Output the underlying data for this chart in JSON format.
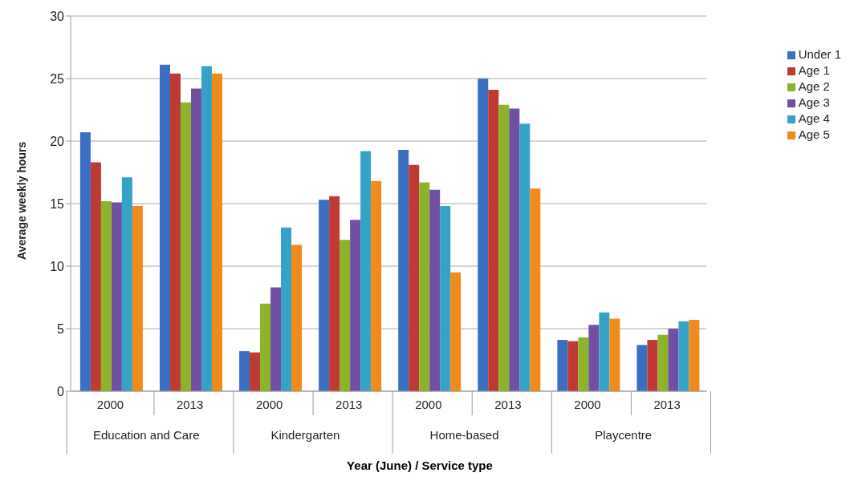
{
  "chart_data": {
    "type": "bar",
    "xlabel": "Year (June) / Service type",
    "ylabel": "Average weekly hours",
    "categories": [
      "2000",
      "2013",
      "2000",
      "2013",
      "2000",
      "2013",
      "2000",
      "2013"
    ],
    "annotations": [
      "Education and Care",
      "Kindergarten",
      "Home-based",
      "Playcentre"
    ],
    "series": [
      {
        "name": "Under 1",
        "color": "#3a6fc4",
        "values": [
          20.7,
          26.1,
          3.2,
          15.3,
          19.3,
          25.0,
          4.1,
          3.7
        ]
      },
      {
        "name": "Age 1",
        "color": "#be3a32",
        "values": [
          18.3,
          25.4,
          3.1,
          15.6,
          18.1,
          24.1,
          4.0,
          4.1
        ]
      },
      {
        "name": "Age 2",
        "color": "#8db32a",
        "values": [
          15.2,
          23.1,
          7.0,
          12.1,
          16.7,
          22.9,
          4.3,
          4.5
        ]
      },
      {
        "name": "Age 3",
        "color": "#7150a3",
        "values": [
          15.1,
          24.2,
          8.3,
          13.7,
          16.1,
          22.6,
          5.3,
          5.0
        ]
      },
      {
        "name": "Age 4",
        "color": "#35a3c8",
        "values": [
          17.1,
          26.0,
          13.1,
          19.2,
          14.8,
          21.4,
          6.3,
          5.6
        ]
      },
      {
        "name": "Age 5",
        "color": "#f08a1c",
        "values": [
          14.8,
          25.4,
          11.7,
          16.8,
          9.5,
          16.2,
          5.8,
          5.7
        ]
      }
    ],
    "ylim": [
      0,
      30
    ],
    "yticks": [
      0,
      5,
      10,
      15,
      20,
      25,
      30
    ],
    "grid": "y",
    "legend": "top right"
  }
}
